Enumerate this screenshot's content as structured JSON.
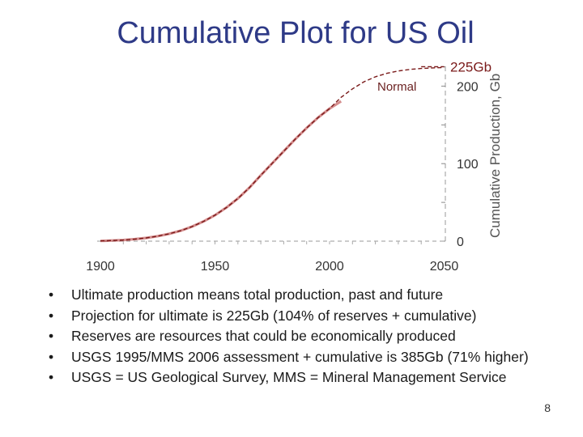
{
  "slide": {
    "title": "Cumulative Plot for US Oil",
    "bullets": [
      "Ultimate production means total production, past and future",
      "Projection for ultimate is 225Gb (104% of reserves + cumulative)",
      "Reserves are resources that could be economically produced",
      "USGS 1995/MMS 2006 assessment + cumulative is 385Gb (71% higher)",
      "USGS = US Geological Survey, MMS = Mineral Management Service"
    ],
    "bullet_symbol": "•",
    "page_number": "8"
  },
  "chart_data": {
    "type": "line",
    "title": "",
    "xlabel": "",
    "ylabel": "Cumulative Production, Gb",
    "xlim": [
      1900,
      2060
    ],
    "ylim": [
      0,
      225
    ],
    "x_ticks": [
      "1900",
      "1950",
      "2000",
      "2050"
    ],
    "y_ticks": [
      "0",
      "100",
      "200"
    ],
    "y_axis_side": "right",
    "annotations": {
      "ultimate": "225Gb",
      "curve_label": "Normal"
    },
    "series": [
      {
        "name": "",
        "color": "#b03030",
        "x": [
          1900,
          1905,
          1910,
          1915,
          1920,
          1925,
          1930,
          1935,
          1940,
          1945,
          1950,
          1955,
          1960,
          1965,
          1970,
          1975,
          1980,
          1985,
          1990,
          1995,
          2000,
          2005
        ],
        "y": [
          0.3,
          0.8,
          1.5,
          2.6,
          4.2,
          6.5,
          9.5,
          13.5,
          18.8,
          25.5,
          33.5,
          43.3,
          55,
          69,
          85,
          100.5,
          116,
          131.5,
          146,
          159.5,
          171,
          180.5
        ]
      },
      {
        "name": "Normal",
        "color": "#7a1a1a",
        "x": [
          1900,
          1905,
          1910,
          1915,
          1920,
          1925,
          1930,
          1935,
          1940,
          1945,
          1950,
          1955,
          1960,
          1965,
          1970,
          1975,
          1980,
          1985,
          1990,
          1995,
          2000,
          2005,
          2010,
          2015,
          2020,
          2025,
          2030,
          2035,
          2040,
          2045,
          2050
        ],
        "y": [
          0.3,
          0.8,
          1.5,
          2.6,
          4.2,
          6.5,
          9.5,
          13.5,
          18.8,
          25.5,
          33.5,
          43.3,
          55,
          69,
          85,
          100.5,
          116,
          131.5,
          146,
          159.5,
          171,
          185.5,
          196.5,
          205.5,
          212,
          216.5,
          219.5,
          221.5,
          222.8,
          223.5,
          224
        ]
      }
    ],
    "ultimate_line": {
      "y": 225,
      "x_from": 2040,
      "x_to": 2050
    },
    "grid": false
  }
}
